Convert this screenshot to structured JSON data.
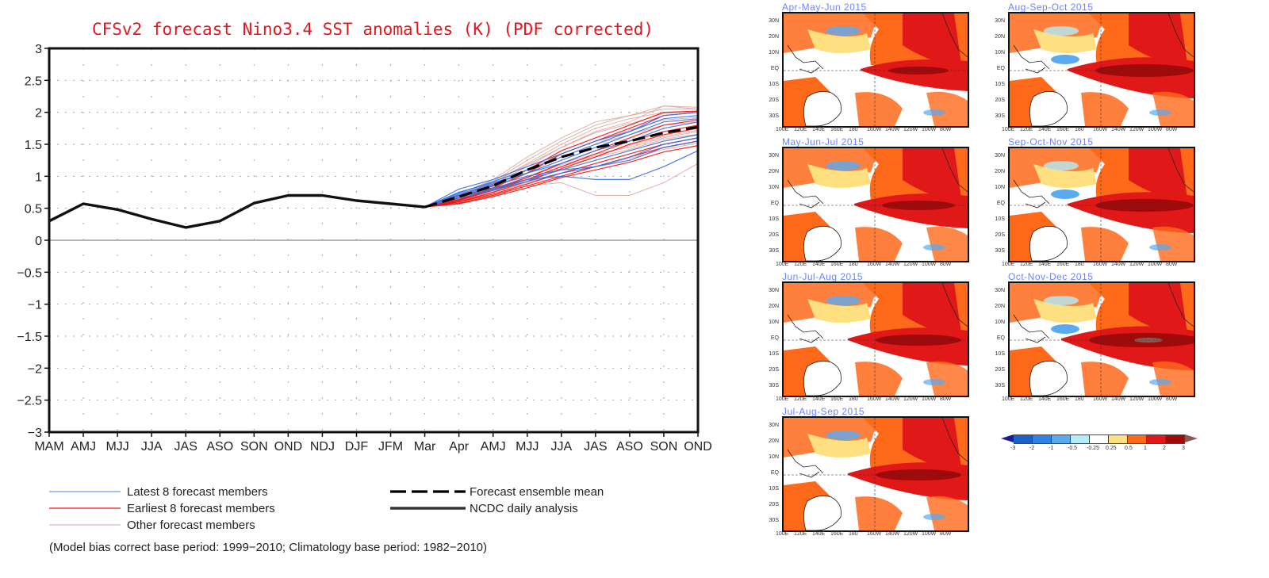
{
  "chart_data": {
    "type": "line",
    "title": "CFSv2 forecast Nino3.4 SST anomalies (K) (PDF corrected)",
    "xlabel": "",
    "ylabel": "",
    "ylim": [
      -3,
      3
    ],
    "yticks": [
      "3",
      "2.5",
      "2",
      "1.5",
      "1",
      "0.5",
      "0",
      "−0.5",
      "−1",
      "−1.5",
      "−2",
      "−2.5",
      "−3"
    ],
    "ytick_values": [
      3,
      2.5,
      2,
      1.5,
      1,
      0.5,
      0,
      -0.5,
      -1,
      -1.5,
      -2,
      -2.5,
      -3
    ],
    "categories": [
      "MAM",
      "AMJ",
      "MJJ",
      "JJA",
      "JAS",
      "ASO",
      "SON",
      "OND",
      "NDJ",
      "DJF",
      "JFM",
      "Mar",
      "Apr",
      "AMJ",
      "MJJ",
      "JJA",
      "JAS",
      "ASO",
      "SON",
      "OND"
    ],
    "grid": true,
    "series": [
      {
        "name": "NCDC daily analysis",
        "style": "solid-thick",
        "color": "#111111",
        "start_index": 0,
        "values": [
          0.3,
          0.57,
          0.48,
          0.33,
          0.2,
          0.3,
          0.58,
          0.7,
          0.7,
          0.62,
          0.57,
          0.52
        ]
      },
      {
        "name": "Forecast ensemble mean",
        "style": "dashed-thick",
        "color": "#000000",
        "start_index": 11,
        "values": [
          0.52,
          0.68,
          0.85,
          1.1,
          1.3,
          1.45,
          1.55,
          1.68,
          1.77
        ]
      }
    ],
    "member_groups": [
      {
        "name": "Latest 8 forecast members",
        "color": "#3a6fe0",
        "start_index": 11,
        "members": [
          [
            0.52,
            0.8,
            0.95,
            1.15,
            1.35,
            1.55,
            1.7,
            1.9,
            1.95
          ],
          [
            0.52,
            0.75,
            0.9,
            1.05,
            1.2,
            1.4,
            1.55,
            1.75,
            1.85
          ],
          [
            0.52,
            0.7,
            0.82,
            0.95,
            1.0,
            0.95,
            0.95,
            1.15,
            1.4
          ],
          [
            0.52,
            0.72,
            0.88,
            1.05,
            1.25,
            1.45,
            1.65,
            1.85,
            1.9
          ],
          [
            0.52,
            0.68,
            0.8,
            0.95,
            1.1,
            1.25,
            1.4,
            1.55,
            1.65
          ],
          [
            0.52,
            0.74,
            0.92,
            1.1,
            1.3,
            1.5,
            1.7,
            1.95,
            2.0
          ],
          [
            0.52,
            0.66,
            0.78,
            0.92,
            1.05,
            1.15,
            1.3,
            1.5,
            1.6
          ],
          [
            0.52,
            0.7,
            0.86,
            1.0,
            1.1,
            1.15,
            1.25,
            1.45,
            1.55
          ]
        ]
      },
      {
        "name": "Earliest 8 forecast members",
        "color": "#ee1111",
        "start_index": 11,
        "members": [
          [
            0.52,
            0.62,
            0.78,
            0.95,
            1.15,
            1.35,
            1.55,
            1.7,
            1.8
          ],
          [
            0.52,
            0.6,
            0.72,
            0.88,
            1.05,
            1.2,
            1.35,
            1.5,
            1.6
          ],
          [
            0.52,
            0.64,
            0.82,
            1.05,
            1.35,
            1.55,
            1.75,
            1.95,
            2.0
          ],
          [
            0.52,
            0.58,
            0.7,
            0.85,
            1.0,
            1.15,
            1.3,
            1.45,
            1.55
          ],
          [
            0.52,
            0.66,
            0.85,
            1.1,
            1.4,
            1.6,
            1.8,
            2.0,
            2.02
          ],
          [
            0.52,
            0.6,
            0.75,
            0.92,
            1.12,
            1.3,
            1.5,
            1.65,
            1.75
          ],
          [
            0.52,
            0.63,
            0.8,
            0.98,
            1.2,
            1.4,
            1.6,
            1.8,
            1.88
          ],
          [
            0.52,
            0.57,
            0.68,
            0.82,
            0.98,
            1.1,
            1.22,
            1.38,
            1.48
          ]
        ]
      },
      {
        "name": "Other forecast members",
        "color": "#d9a49a",
        "start_index": 11,
        "members": [
          [
            0.52,
            0.72,
            0.95,
            1.3,
            1.6,
            1.85,
            1.95,
            2.05,
            2.05
          ],
          [
            0.52,
            0.7,
            0.9,
            1.2,
            1.5,
            1.75,
            1.9,
            2.0,
            2.0
          ],
          [
            0.52,
            0.62,
            0.72,
            0.85,
            0.9,
            0.7,
            0.7,
            0.9,
            1.2
          ],
          [
            0.52,
            0.68,
            0.88,
            1.15,
            1.45,
            1.7,
            1.85,
            2.1,
            2.05
          ],
          [
            0.52,
            0.66,
            0.84,
            1.05,
            1.3,
            1.5,
            1.65,
            1.8,
            1.85
          ],
          [
            0.52,
            0.64,
            0.8,
            1.0,
            1.2,
            1.35,
            1.45,
            1.6,
            1.7
          ],
          [
            0.52,
            0.7,
            0.92,
            1.25,
            1.55,
            1.8,
            1.95,
            2.1,
            2.08
          ],
          [
            0.52,
            0.61,
            0.76,
            0.95,
            1.15,
            1.3,
            1.42,
            1.58,
            1.66
          ],
          [
            0.52,
            0.67,
            0.86,
            1.1,
            1.35,
            1.55,
            1.72,
            1.88,
            1.92
          ],
          [
            0.52,
            0.63,
            0.78,
            0.98,
            1.18,
            1.32,
            1.48,
            1.62,
            1.72
          ],
          [
            0.52,
            0.69,
            0.9,
            1.18,
            1.45,
            1.68,
            1.82,
            1.98,
            2.02
          ],
          [
            0.52,
            0.6,
            0.74,
            0.9,
            1.05,
            1.15,
            1.28,
            1.42,
            1.52
          ]
        ]
      }
    ],
    "legend": {
      "placement": "bottom",
      "entries": [
        {
          "label": "Latest 8 forecast members",
          "color": "#6a9be8",
          "style": "thin"
        },
        {
          "label": "Earliest 8 forecast members",
          "color": "#ee1111",
          "style": "thin"
        },
        {
          "label": "Other forecast members",
          "color": "#e0b8b0",
          "style": "thin"
        },
        {
          "label": "Forecast ensemble mean",
          "color": "#000000",
          "style": "dashed-thick"
        },
        {
          "label": "NCDC daily analysis",
          "color": "#333333",
          "style": "solid-thick"
        }
      ]
    },
    "footnote": "(Model bias correct base period: 1999−2010; Climatology base period: 1982−2010)"
  },
  "maps": {
    "lat_labels": [
      "30N",
      "20N",
      "10N",
      "EQ",
      "10S",
      "20S",
      "30S"
    ],
    "lon_labels": [
      "100E",
      "120E",
      "140E",
      "160E",
      "180",
      "160W",
      "140W",
      "120W",
      "100W",
      "80W"
    ],
    "panels": [
      {
        "title": "Apr-May-Jun 2015",
        "intensity": 1
      },
      {
        "title": "May-Jun-Jul 2015",
        "intensity": 2
      },
      {
        "title": "Jun-Jul-Aug 2015",
        "intensity": 3
      },
      {
        "title": "Jul-Aug-Sep 2015",
        "intensity": 3
      },
      {
        "title": "Aug-Sep-Oct 2015",
        "intensity": 4
      },
      {
        "title": "Sep-Oct-Nov 2015",
        "intensity": 4
      },
      {
        "title": "Oct-Nov-Dec 2015",
        "intensity": 5
      }
    ],
    "colorbar": {
      "labels": [
        "-3",
        "-2",
        "-1",
        "-0.5",
        "-0.25",
        "0.25",
        "0.5",
        "1",
        "2",
        "3"
      ],
      "colors": [
        "#1a1a9a",
        "#1e60c8",
        "#2e82e8",
        "#5aaaf0",
        "#b4ecf8",
        "#ffffff",
        "#ffe080",
        "#ff6a1a",
        "#e01818",
        "#a00a0a",
        "#8a5a50"
      ]
    }
  }
}
